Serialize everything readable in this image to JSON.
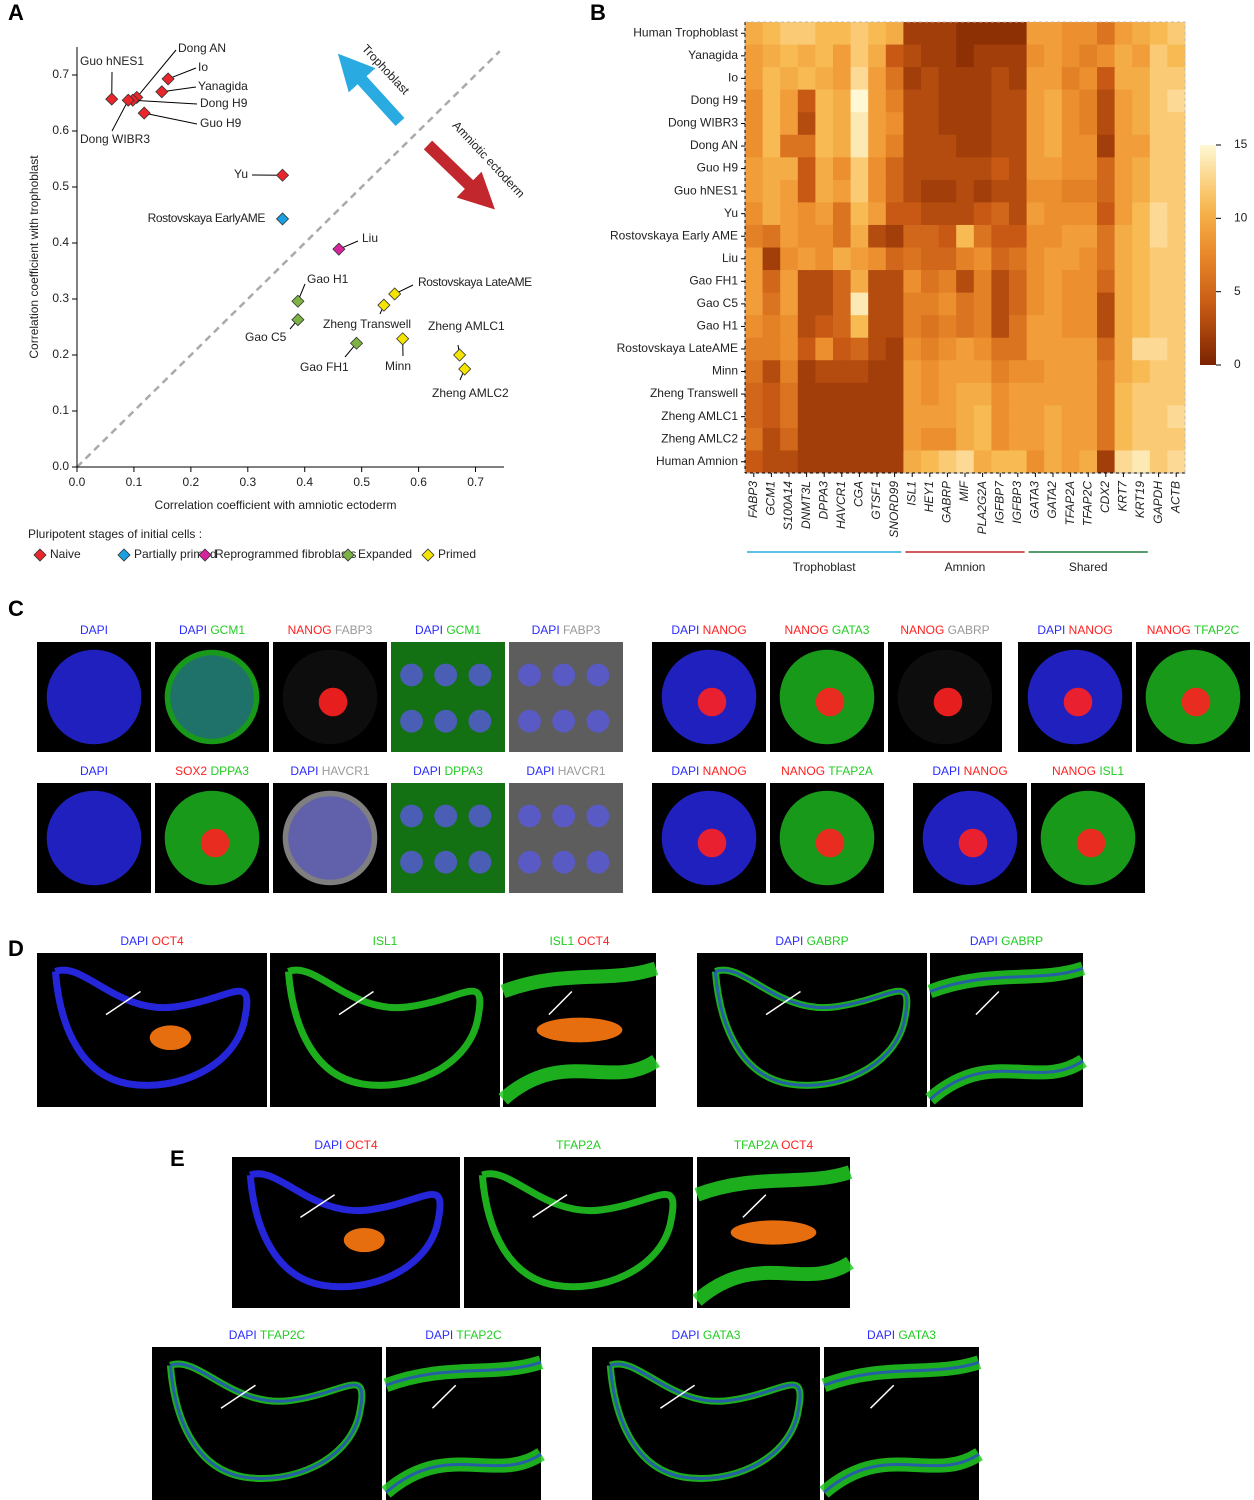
{
  "chart_data": [
    {
      "type": "scatter",
      "panel_label": "A",
      "x_label": "Correlation coefficient with amniotic ectoderm",
      "y_label": "Correlation coefficient with trophoblast",
      "xlim": [
        0,
        0.75
      ],
      "ylim": [
        0,
        0.75
      ],
      "xticks": [
        {
          "value": 0,
          "label": "0.0"
        },
        0.1,
        0.2,
        0.3,
        0.4,
        0.5,
        0.6,
        0.7
      ],
      "yticks": [
        {
          "value": 0,
          "label": "0.0"
        },
        0.1,
        0.2,
        0.3,
        0.4,
        0.5,
        0.6,
        0.7
      ],
      "annotations": [
        {
          "text": "Trophoblast",
          "color": "#29abe2"
        },
        {
          "text": "Amniotic ectoderm",
          "color": "#c1272d"
        }
      ],
      "legend_title": "Pluripotent stages of initial cells :",
      "series": [
        {
          "name": "Naive",
          "color": "#e8262b",
          "labels": [
            "Guo hNES1",
            "Dong AN",
            "Io",
            "Yanagida",
            "Dong H9",
            "Guo H9",
            "Dong WIBR3",
            "Yu"
          ],
          "x": [
            0.061,
            0.105,
            0.16,
            0.149,
            0.098,
            0.118,
            0.09,
            0.361
          ],
          "values": [
            0.657,
            0.66,
            0.693,
            0.67,
            0.655,
            0.632,
            0.655,
            0.521
          ]
        },
        {
          "name": "Partially primed",
          "color": "#1ba1e2",
          "labels": [
            "Rostovskaya EarlyAME"
          ],
          "x": [
            0.361
          ],
          "values": [
            0.443
          ]
        },
        {
          "name": "Reprogrammed fibroblasts",
          "color": "#d6249f",
          "labels": [
            "Liu"
          ],
          "x": [
            0.46
          ],
          "values": [
            0.389
          ]
        },
        {
          "name": "Expanded",
          "color": "#7cb342",
          "labels": [
            "Gao H1",
            "Gao C5",
            "Gao FH1"
          ],
          "x": [
            0.388,
            0.388,
            0.491
          ],
          "values": [
            0.296,
            0.263,
            0.221
          ]
        },
        {
          "name": "Primed",
          "color": "#f5e400",
          "labels": [
            "Rostovskaya LateAME",
            "Zheng Transwell",
            "Minn",
            "Zheng AMLC1",
            "Zheng AMLC2"
          ],
          "x": [
            0.558,
            0.539,
            0.572,
            0.672,
            0.681
          ],
          "values": [
            0.309,
            0.289,
            0.229,
            0.2,
            0.175
          ]
        }
      ]
    },
    {
      "type": "heatmap",
      "panel_label": "B",
      "zlim": [
        0,
        15
      ],
      "zticks": [
        0,
        5,
        10,
        15
      ],
      "categories": [
        "Human Trophoblast",
        "Yanagida",
        "Io",
        "Dong H9",
        "Dong WIBR3",
        "Dong AN",
        "Guo H9",
        "Guo hNES1",
        "Yu",
        "Rostovskaya Early AME",
        "Liu",
        "Gao FH1",
        "Gao C5",
        "Gao H1",
        "Rostovskaya LateAME",
        "Minn",
        "Zheng Transwell",
        "Zheng AMLC1",
        "Zheng AMLC2",
        "Human Amnion"
      ],
      "column_groups": [
        {
          "name": "Trophoblast",
          "color": "#29abe2",
          "genes": [
            "FABP3",
            "GCM1",
            "S100A14",
            "DNMT3L",
            "DPPA3",
            "HAVCR1",
            "CGA",
            "GTSF1",
            "SNORD99"
          ]
        },
        {
          "name": "Amnion",
          "color": "#c1272d",
          "genes": [
            "ISL1",
            "HEY1",
            "GABRP",
            "MIF",
            "PLA2G2A",
            "IGFBP7",
            "IGFBP3"
          ]
        },
        {
          "name": "Shared",
          "color": "#1e7b3c",
          "genes": [
            "GATA3",
            "GATA2",
            "TFAP2A",
            "TFAP2C",
            "CDX2",
            "KRT7",
            "KRT19"
          ]
        }
      ],
      "control_genes": {
        "color": "#000000",
        "genes": [
          "GAPDH",
          "ACTB"
        ]
      },
      "values": [
        [
          10,
          11,
          12,
          12,
          11,
          11,
          12,
          11,
          10,
          2,
          2,
          2,
          1,
          1,
          1,
          1,
          9,
          9,
          8,
          8,
          6,
          9,
          10,
          11,
          12
        ],
        [
          9,
          10,
          11,
          10,
          11,
          9,
          12,
          10,
          4,
          3,
          2,
          2,
          1,
          2,
          2,
          2,
          8,
          9,
          8,
          7,
          8,
          10,
          9,
          12,
          11
        ],
        [
          9,
          11,
          10,
          11,
          10,
          9,
          13,
          9,
          6,
          2,
          3,
          2,
          2,
          2,
          3,
          2,
          9,
          9,
          7,
          8,
          4,
          10,
          10,
          12,
          12
        ],
        [
          8,
          11,
          9,
          4,
          11,
          10,
          15,
          9,
          7,
          3,
          3,
          2,
          2,
          2,
          3,
          3,
          9,
          10,
          8,
          7,
          3,
          9,
          10,
          12,
          13
        ],
        [
          8,
          11,
          9,
          3,
          11,
          10,
          14,
          9,
          8,
          3,
          3,
          2,
          2,
          2,
          3,
          3,
          9,
          10,
          8,
          7,
          3,
          9,
          10,
          12,
          12
        ],
        [
          8,
          11,
          6,
          6,
          11,
          10,
          14,
          9,
          7,
          3,
          3,
          3,
          2,
          2,
          3,
          3,
          9,
          10,
          8,
          8,
          2,
          9,
          9,
          12,
          12
        ],
        [
          9,
          10,
          10,
          4,
          10,
          8,
          12,
          8,
          5,
          3,
          3,
          3,
          3,
          3,
          4,
          3,
          9,
          9,
          8,
          8,
          5,
          9,
          10,
          12,
          12
        ],
        [
          9,
          10,
          9,
          4,
          10,
          9,
          12,
          8,
          5,
          3,
          2,
          2,
          3,
          2,
          3,
          3,
          8,
          8,
          7,
          7,
          5,
          9,
          10,
          12,
          12
        ],
        [
          8,
          10,
          9,
          8,
          9,
          6,
          11,
          9,
          4,
          4,
          3,
          3,
          3,
          4,
          5,
          3,
          9,
          8,
          8,
          8,
          4,
          9,
          11,
          13,
          12
        ],
        [
          7,
          6,
          9,
          8,
          8,
          6,
          10,
          3,
          2,
          5,
          5,
          4,
          11,
          6,
          4,
          4,
          8,
          8,
          9,
          9,
          6,
          10,
          11,
          13,
          12
        ],
        [
          9,
          2,
          8,
          9,
          8,
          10,
          9,
          8,
          5,
          6,
          5,
          5,
          7,
          8,
          5,
          6,
          8,
          9,
          9,
          8,
          6,
          10,
          11,
          12,
          12
        ],
        [
          9,
          5,
          9,
          3,
          3,
          5,
          10,
          3,
          3,
          8,
          6,
          7,
          3,
          7,
          3,
          5,
          8,
          9,
          8,
          8,
          5,
          10,
          11,
          12,
          12
        ],
        [
          9,
          6,
          9,
          3,
          3,
          5,
          14,
          3,
          3,
          7,
          7,
          8,
          6,
          7,
          3,
          5,
          8,
          9,
          8,
          8,
          3,
          10,
          11,
          12,
          12
        ],
        [
          8,
          7,
          8,
          3,
          4,
          5,
          11,
          3,
          3,
          7,
          6,
          7,
          6,
          7,
          3,
          6,
          9,
          9,
          8,
          8,
          3,
          10,
          11,
          12,
          12
        ],
        [
          7,
          7,
          8,
          4,
          8,
          4,
          5,
          3,
          2,
          8,
          7,
          8,
          9,
          8,
          6,
          6,
          9,
          9,
          9,
          9,
          5,
          10,
          13,
          13,
          12
        ],
        [
          6,
          3,
          7,
          2,
          3,
          3,
          3,
          2,
          2,
          9,
          8,
          9,
          9,
          9,
          7,
          8,
          8,
          9,
          9,
          9,
          6,
          10,
          11,
          12,
          12
        ],
        [
          5,
          4,
          6,
          2,
          2,
          2,
          2,
          2,
          2,
          9,
          8,
          9,
          10,
          10,
          8,
          9,
          9,
          9,
          9,
          9,
          6,
          11,
          12,
          12,
          12
        ],
        [
          5,
          4,
          6,
          2,
          2,
          2,
          2,
          2,
          2,
          9,
          9,
          9,
          10,
          11,
          8,
          9,
          9,
          10,
          9,
          9,
          6,
          11,
          12,
          12,
          13
        ],
        [
          6,
          3,
          5,
          2,
          2,
          2,
          2,
          2,
          2,
          9,
          8,
          8,
          10,
          11,
          8,
          9,
          9,
          10,
          9,
          9,
          6,
          11,
          12,
          12,
          12
        ],
        [
          4,
          3,
          3,
          2,
          2,
          2,
          2,
          2,
          2,
          10,
          11,
          12,
          13,
          10,
          11,
          11,
          8,
          10,
          9,
          10,
          2,
          13,
          14,
          12,
          13
        ]
      ]
    }
  ],
  "panel_c": {
    "label": "C",
    "images": [
      {
        "stains": [
          {
            "name": "DAPI",
            "color": "#2b2bff"
          }
        ]
      },
      {
        "stains": [
          {
            "name": "DAPI",
            "color": "#2b2bff"
          },
          {
            "name": "GCM1",
            "color": "#22cc22"
          }
        ]
      },
      {
        "stains": [
          {
            "name": "NANOG",
            "color": "#ff2020"
          },
          {
            "name": "FABP3",
            "color": "#aaaaaa"
          }
        ]
      },
      {
        "stains": [
          {
            "name": "DAPI",
            "color": "#2b2bff"
          },
          {
            "name": "GCM1",
            "color": "#22cc22"
          }
        ]
      },
      {
        "stains": [
          {
            "name": "DAPI",
            "color": "#2b2bff"
          },
          {
            "name": "FABP3",
            "color": "#aaaaaa"
          }
        ]
      },
      {
        "stains": [
          {
            "name": "DAPI",
            "color": "#2b2bff"
          },
          {
            "name": "NANOG",
            "color": "#ff2020"
          }
        ]
      },
      {
        "stains": [
          {
            "name": "NANOG",
            "color": "#ff2020"
          },
          {
            "name": "GATA3",
            "color": "#22cc22"
          }
        ]
      },
      {
        "stains": [
          {
            "name": "NANOG",
            "color": "#ff2020"
          },
          {
            "name": "GABRP",
            "color": "#aaaaaa"
          }
        ]
      },
      {
        "stains": [
          {
            "name": "DAPI",
            "color": "#2b2bff"
          },
          {
            "name": "NANOG",
            "color": "#ff2020"
          }
        ]
      },
      {
        "stains": [
          {
            "name": "NANOG",
            "color": "#ff2020"
          },
          {
            "name": "TFAP2C",
            "color": "#22cc22"
          }
        ]
      },
      {
        "stains": [
          {
            "name": "DAPI",
            "color": "#2b2bff"
          }
        ]
      },
      {
        "stains": [
          {
            "name": "SOX2",
            "color": "#ff2020"
          },
          {
            "name": "DPPA3",
            "color": "#22cc22"
          }
        ]
      },
      {
        "stains": [
          {
            "name": "DAPI",
            "color": "#2b2bff"
          },
          {
            "name": "HAVCR1",
            "color": "#aaaaaa"
          }
        ]
      },
      {
        "stains": [
          {
            "name": "DAPI",
            "color": "#2b2bff"
          },
          {
            "name": "DPPA3",
            "color": "#22cc22"
          }
        ]
      },
      {
        "stains": [
          {
            "name": "DAPI",
            "color": "#2b2bff"
          },
          {
            "name": "HAVCR1",
            "color": "#aaaaaa"
          }
        ]
      },
      {
        "stains": [
          {
            "name": "DAPI",
            "color": "#2b2bff"
          },
          {
            "name": "NANOG",
            "color": "#ff2020"
          }
        ]
      },
      {
        "stains": [
          {
            "name": "NANOG",
            "color": "#ff2020"
          },
          {
            "name": "TFAP2A",
            "color": "#22cc22"
          }
        ]
      },
      {
        "stains": [
          {
            "name": "DAPI",
            "color": "#2b2bff"
          },
          {
            "name": "NANOG",
            "color": "#ff2020"
          }
        ]
      },
      {
        "stains": [
          {
            "name": "NANOG",
            "color": "#ff2020"
          },
          {
            "name": "ISL1",
            "color": "#22cc22"
          }
        ]
      }
    ]
  },
  "panel_d": {
    "label": "D",
    "images": [
      {
        "stains": [
          {
            "name": "DAPI",
            "color": "#2b2bff"
          },
          {
            "name": "OCT4",
            "color": "#ff2020"
          }
        ]
      },
      {
        "stains": [
          {
            "name": "ISL1",
            "color": "#22cc22"
          }
        ]
      },
      {
        "stains": [
          {
            "name": "ISL1",
            "color": "#22cc22"
          },
          {
            "name": "OCT4",
            "color": "#ff2020"
          }
        ]
      },
      {
        "stains": [
          {
            "name": "DAPI",
            "color": "#2b2bff"
          },
          {
            "name": "GABRP",
            "color": "#22cc22"
          }
        ]
      },
      {
        "stains": [
          {
            "name": "DAPI",
            "color": "#2b2bff"
          },
          {
            "name": "GABRP",
            "color": "#22cc22"
          }
        ]
      }
    ]
  },
  "panel_e": {
    "label": "E",
    "images": [
      {
        "stains": [
          {
            "name": "DAPI",
            "color": "#2b2bff"
          },
          {
            "name": "OCT4",
            "color": "#ff2020"
          }
        ]
      },
      {
        "stains": [
          {
            "name": "TFAP2A",
            "color": "#22cc22"
          }
        ]
      },
      {
        "stains": [
          {
            "name": "TFAP2A",
            "color": "#22cc22"
          },
          {
            "name": "OCT4",
            "color": "#ff2020"
          }
        ]
      },
      {
        "stains": [
          {
            "name": "DAPI",
            "color": "#2b2bff"
          },
          {
            "name": "TFAP2C",
            "color": "#22cc22"
          }
        ]
      },
      {
        "stains": [
          {
            "name": "DAPI",
            "color": "#2b2bff"
          },
          {
            "name": "TFAP2C",
            "color": "#22cc22"
          }
        ]
      },
      {
        "stains": [
          {
            "name": "DAPI",
            "color": "#2b2bff"
          },
          {
            "name": "GATA3",
            "color": "#22cc22"
          }
        ]
      },
      {
        "stains": [
          {
            "name": "DAPI",
            "color": "#2b2bff"
          },
          {
            "name": "GATA3",
            "color": "#22cc22"
          }
        ]
      }
    ]
  }
}
